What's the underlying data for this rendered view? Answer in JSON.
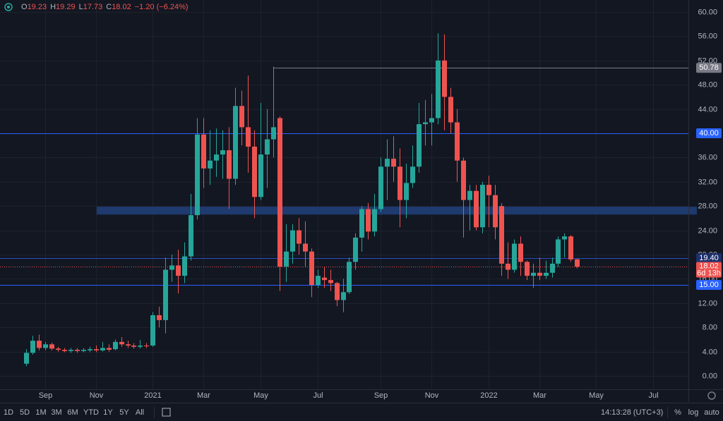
{
  "chart_data": {
    "type": "candlestick",
    "header": [
      {
        "label": "O",
        "value": 19.23
      },
      {
        "label": "H",
        "value": 19.29
      },
      {
        "label": "L",
        "value": 17.73
      },
      {
        "label": "C",
        "value": 18.02
      }
    ],
    "change": "−1.20 (−6.24%)",
    "categories": [
      null,
      null,
      null,
      "Sep",
      null,
      null,
      null,
      null,
      null,
      null,
      null,
      "Nov",
      null,
      null,
      null,
      null,
      null,
      null,
      null,
      null,
      "2021",
      null,
      null,
      null,
      null,
      null,
      null,
      null,
      "Mar",
      null,
      null,
      null,
      null,
      null,
      null,
      null,
      null,
      "May",
      null,
      null,
      null,
      null,
      null,
      null,
      null,
      null,
      "Jul",
      null,
      null,
      null,
      null,
      null,
      null,
      null,
      null,
      null,
      "Sep",
      null,
      null,
      null,
      null,
      null,
      null,
      null,
      "Nov",
      null,
      null,
      null,
      null,
      null,
      null,
      null,
      null,
      "2022",
      null,
      null,
      null,
      null,
      null,
      null,
      null,
      "Mar",
      null,
      null,
      null,
      null,
      null,
      null,
      null,
      null,
      "May",
      null,
      null,
      null,
      null,
      null,
      null,
      null,
      null,
      "Jul",
      null,
      null,
      null,
      null
    ],
    "open": [
      2.0,
      3.8,
      5.8,
      4.6,
      5.2,
      4.5,
      4.3,
      4.1,
      4.3,
      4.1,
      4.2,
      4.4,
      4.2,
      4.6,
      4.4,
      5.6,
      5.2,
      5.0,
      4.8,
      5.0,
      5.0,
      10.0,
      9.2,
      17.5,
      18.2,
      16.5,
      19.7,
      26.5,
      39.8,
      34.2,
      35.5,
      36.5,
      37.2,
      32.5,
      44.5,
      41.0,
      37.8,
      29.5,
      36.5,
      39.0,
      42.5,
      18.0,
      20.5,
      24.0,
      21.8,
      20.5,
      15.0,
      16.2,
      15.8,
      15.3,
      12.5,
      13.8,
      18.8,
      22.8,
      27.5,
      23.8,
      27.5,
      34.5,
      35.8,
      34.5,
      29.0,
      31.8,
      34.5,
      41.5,
      41.8,
      42.5,
      52.0,
      46.0,
      41.8,
      35.5,
      29.0,
      30.5,
      24.5,
      31.5,
      29.8,
      28.0,
      18.5,
      17.5,
      21.8,
      18.8,
      16.5,
      17.0,
      16.5,
      17.0,
      18.5,
      22.5,
      23.0,
      19.23,
      null,
      null,
      null,
      null,
      null,
      null,
      null,
      null,
      null,
      null,
      null,
      null,
      null,
      null,
      null,
      null
    ],
    "high": [
      4.4,
      6.6,
      6.8,
      5.6,
      5.5,
      4.8,
      4.6,
      4.6,
      4.6,
      4.6,
      4.8,
      5.0,
      5.6,
      5.2,
      6.0,
      6.4,
      5.8,
      5.4,
      5.9,
      5.4,
      10.5,
      11.4,
      19.5,
      20.0,
      20.8,
      22.0,
      30.0,
      42.5,
      42.5,
      40.5,
      40.8,
      40.5,
      41.0,
      47.5,
      47.0,
      49.5,
      40.5,
      45.0,
      44.0,
      51.0,
      42.8,
      25.0,
      25.0,
      26.0,
      25.5,
      21.0,
      17.5,
      18.0,
      17.5,
      15.5,
      16.0,
      19.5,
      23.5,
      28.0,
      28.5,
      30.0,
      36.0,
      39.0,
      39.5,
      37.5,
      35.0,
      38.0,
      45.0,
      45.5,
      46.5,
      56.5,
      56.3,
      47.5,
      44.0,
      36.0,
      31.5,
      31.5,
      32.0,
      33.0,
      31.5,
      28.5,
      22.0,
      22.5,
      23.0,
      19.0,
      18.5,
      19.5,
      19.0,
      19.5,
      23.0,
      23.5,
      23.2,
      19.29,
      null,
      null,
      null,
      null,
      null,
      null,
      null,
      null,
      null,
      null,
      null,
      null,
      null,
      null,
      null,
      null
    ],
    "low": [
      1.6,
      3.5,
      4.2,
      4.2,
      4.2,
      4.0,
      3.9,
      3.8,
      3.8,
      3.9,
      3.9,
      3.9,
      4.0,
      4.0,
      4.2,
      4.8,
      4.6,
      4.5,
      4.5,
      4.6,
      4.8,
      8.0,
      7.0,
      15.5,
      13.6,
      15.3,
      19.0,
      25.8,
      31.0,
      31.5,
      32.8,
      32.5,
      27.5,
      31.5,
      38.0,
      33.5,
      26.0,
      29.0,
      31.0,
      36.0,
      14.0,
      15.5,
      18.5,
      20.0,
      18.0,
      13.0,
      14.5,
      14.5,
      14.0,
      11.5,
      10.5,
      13.5,
      17.5,
      20.5,
      22.5,
      23.0,
      27.0,
      29.0,
      32.0,
      24.5,
      26.0,
      31.0,
      33.5,
      38.0,
      38.0,
      41.5,
      40.5,
      40.0,
      32.0,
      22.8,
      24.0,
      24.0,
      23.5,
      24.5,
      22.5,
      16.5,
      16.0,
      17.0,
      16.5,
      15.8,
      14.5,
      15.8,
      16.0,
      16.2,
      18.0,
      19.5,
      18.8,
      17.73,
      null,
      null,
      null,
      null,
      null,
      null,
      null,
      null,
      null,
      null,
      null,
      null,
      null,
      null,
      null,
      null
    ],
    "close": [
      3.8,
      5.8,
      4.6,
      5.2,
      4.5,
      4.3,
      4.1,
      4.3,
      4.1,
      4.3,
      4.4,
      4.2,
      4.6,
      4.3,
      5.6,
      5.2,
      5.0,
      4.8,
      5.0,
      4.9,
      10.0,
      9.2,
      17.5,
      18.2,
      16.5,
      19.7,
      26.5,
      39.8,
      34.2,
      35.5,
      36.5,
      37.2,
      32.5,
      44.5,
      41.0,
      37.8,
      29.5,
      36.5,
      39.0,
      41.0,
      18.0,
      20.5,
      24.0,
      21.8,
      20.5,
      15.0,
      16.5,
      15.8,
      15.3,
      12.5,
      13.8,
      18.8,
      22.8,
      27.5,
      23.8,
      27.5,
      34.5,
      35.8,
      34.5,
      29.0,
      31.8,
      34.5,
      41.5,
      41.8,
      42.5,
      52.0,
      46.0,
      41.8,
      35.5,
      29.0,
      30.5,
      24.5,
      31.5,
      29.8,
      24.5,
      18.5,
      17.5,
      21.8,
      18.8,
      16.5,
      17.0,
      16.5,
      17.0,
      18.5,
      22.5,
      23.0,
      19.2,
      18.02,
      null,
      null,
      null,
      null,
      null,
      null,
      null,
      null,
      null,
      null,
      null,
      null,
      null,
      null,
      null,
      null
    ],
    "up_color": "#26a69a",
    "down_color": "#ef5350",
    "ylim": [
      -1.0,
      61.5
    ],
    "yticks": [
      {
        "value": 0,
        "label": "0.00"
      },
      {
        "value": 4,
        "label": "4.00"
      },
      {
        "value": 8,
        "label": "8.00"
      },
      {
        "value": 12,
        "label": "12.00"
      },
      {
        "value": 16,
        "label": "16.00"
      },
      {
        "value": 20,
        "label": "20.00"
      },
      {
        "value": 24,
        "label": "24.00"
      },
      {
        "value": 28,
        "label": "28.00"
      },
      {
        "value": 32,
        "label": "32.00"
      },
      {
        "value": 36,
        "label": "36.00"
      },
      {
        "value": 40,
        "label": "40.00"
      },
      {
        "value": 44,
        "label": "44.00"
      },
      {
        "value": 48,
        "label": "48.00"
      },
      {
        "value": 52,
        "label": "52.00"
      },
      {
        "value": 56,
        "label": "56.00"
      },
      {
        "value": 60,
        "label": "60.00"
      }
    ],
    "grid": true,
    "zone": {
      "from": 26.6,
      "to": 27.9,
      "color": "#1e3a6e"
    },
    "levels": [
      {
        "value": 50.78,
        "label": "50.78",
        "color": "#787b86",
        "label_color": "#787b86",
        "ray": true
      },
      {
        "value": 40,
        "label": "40.00",
        "color": "#2962ff",
        "label_color": "#2962ff",
        "ray": false
      },
      {
        "value": 19.4,
        "label": "19.40",
        "color": "#2a4bbf",
        "label_color": "#1c2f6b",
        "ray": false
      },
      {
        "value": 15,
        "label": "15.00",
        "color": "#2962ff",
        "label_color": "#2962ff",
        "ray": false
      }
    ],
    "last_price": {
      "value": 18.02,
      "countdown": "6d 13h",
      "color": "#ef5350"
    }
  },
  "toolbar": {
    "ranges": [
      "1D",
      "5D",
      "1M",
      "3M",
      "6M",
      "YTD",
      "1Y",
      "5Y",
      "All"
    ],
    "time": "14:13:28 (UTC+3)",
    "options": [
      "%",
      "log",
      "auto"
    ]
  }
}
